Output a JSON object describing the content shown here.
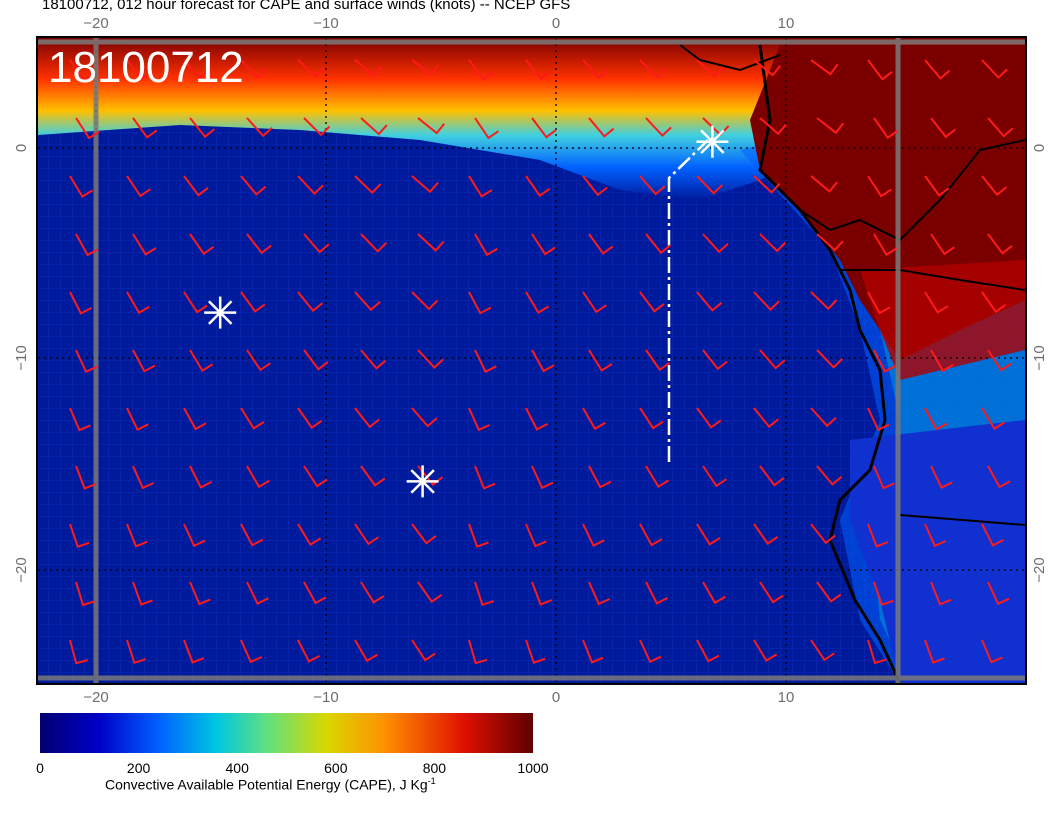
{
  "title": "18100712, 012 hour forecast for CAPE and surface winds (knots) -- NCEP GFS",
  "map_label": "18100712",
  "axes": {
    "top_lon_ticks": [
      "−20",
      "−10",
      "0",
      "10"
    ],
    "bottom_lon_ticks": [
      "−20",
      "−10",
      "0",
      "10"
    ],
    "left_lat_ticks": [
      "0",
      "−10",
      "−20"
    ],
    "right_lat_ticks": [
      "0",
      "−10",
      "−20"
    ]
  },
  "colorbar": {
    "ticks": [
      "0",
      "200",
      "400",
      "600",
      "800",
      "1000"
    ],
    "label": "Convective Available Potential Energy (CAPE), J Kg",
    "label_superscript": "-1"
  },
  "colors": {
    "ocean": "#001a9c",
    "land_high_cape": "#7a0000",
    "wind_barb": "#ff1a1a",
    "coastline": "#000000",
    "marker": "#ffffff",
    "track": "#ffffff",
    "grid": "#7a7a7a"
  },
  "markers": [
    {
      "name": "asterisk-marker-1",
      "lon": -14.6,
      "lat": -7.8
    },
    {
      "name": "asterisk-marker-2",
      "lon": -5.8,
      "lat": -15.8
    },
    {
      "name": "asterisk-marker-3",
      "lon": 6.8,
      "lat": 0.3
    }
  ],
  "wind_barb_icon": "wind-barb-icon"
}
